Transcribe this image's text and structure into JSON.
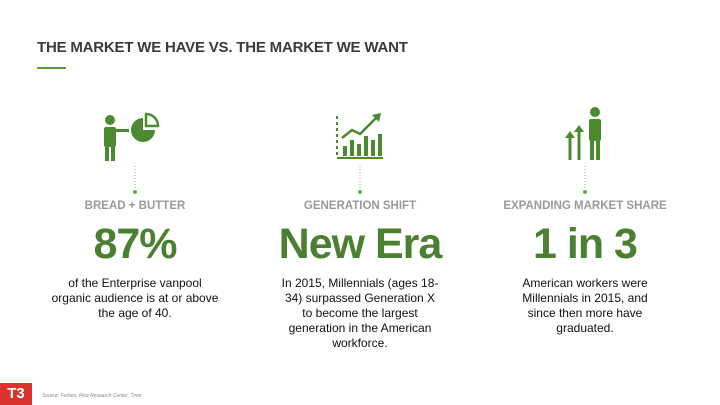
{
  "header": {
    "title": "THE MARKET WE HAVE VS. THE MARKET WE WANT"
  },
  "columns": [
    {
      "label": "BREAD + BUTTER",
      "stat": "87%",
      "description": "of the Enterprise vanpool organic audience is at or above the age of 40."
    },
    {
      "label": "GENERATION SHIFT",
      "stat": "New Era",
      "description": "In 2015, Millennials (ages 18-34) surpassed Generation X to become the largest generation in the American workforce."
    },
    {
      "label": "EXPANDING MARKET SHARE",
      "stat": "1 in 3",
      "description": "American workers were Millennials in 2015, and since then more have graduated."
    }
  ],
  "footer": {
    "logo": "T3",
    "source": "Source: Forbes, Pew Research Center, Time"
  }
}
